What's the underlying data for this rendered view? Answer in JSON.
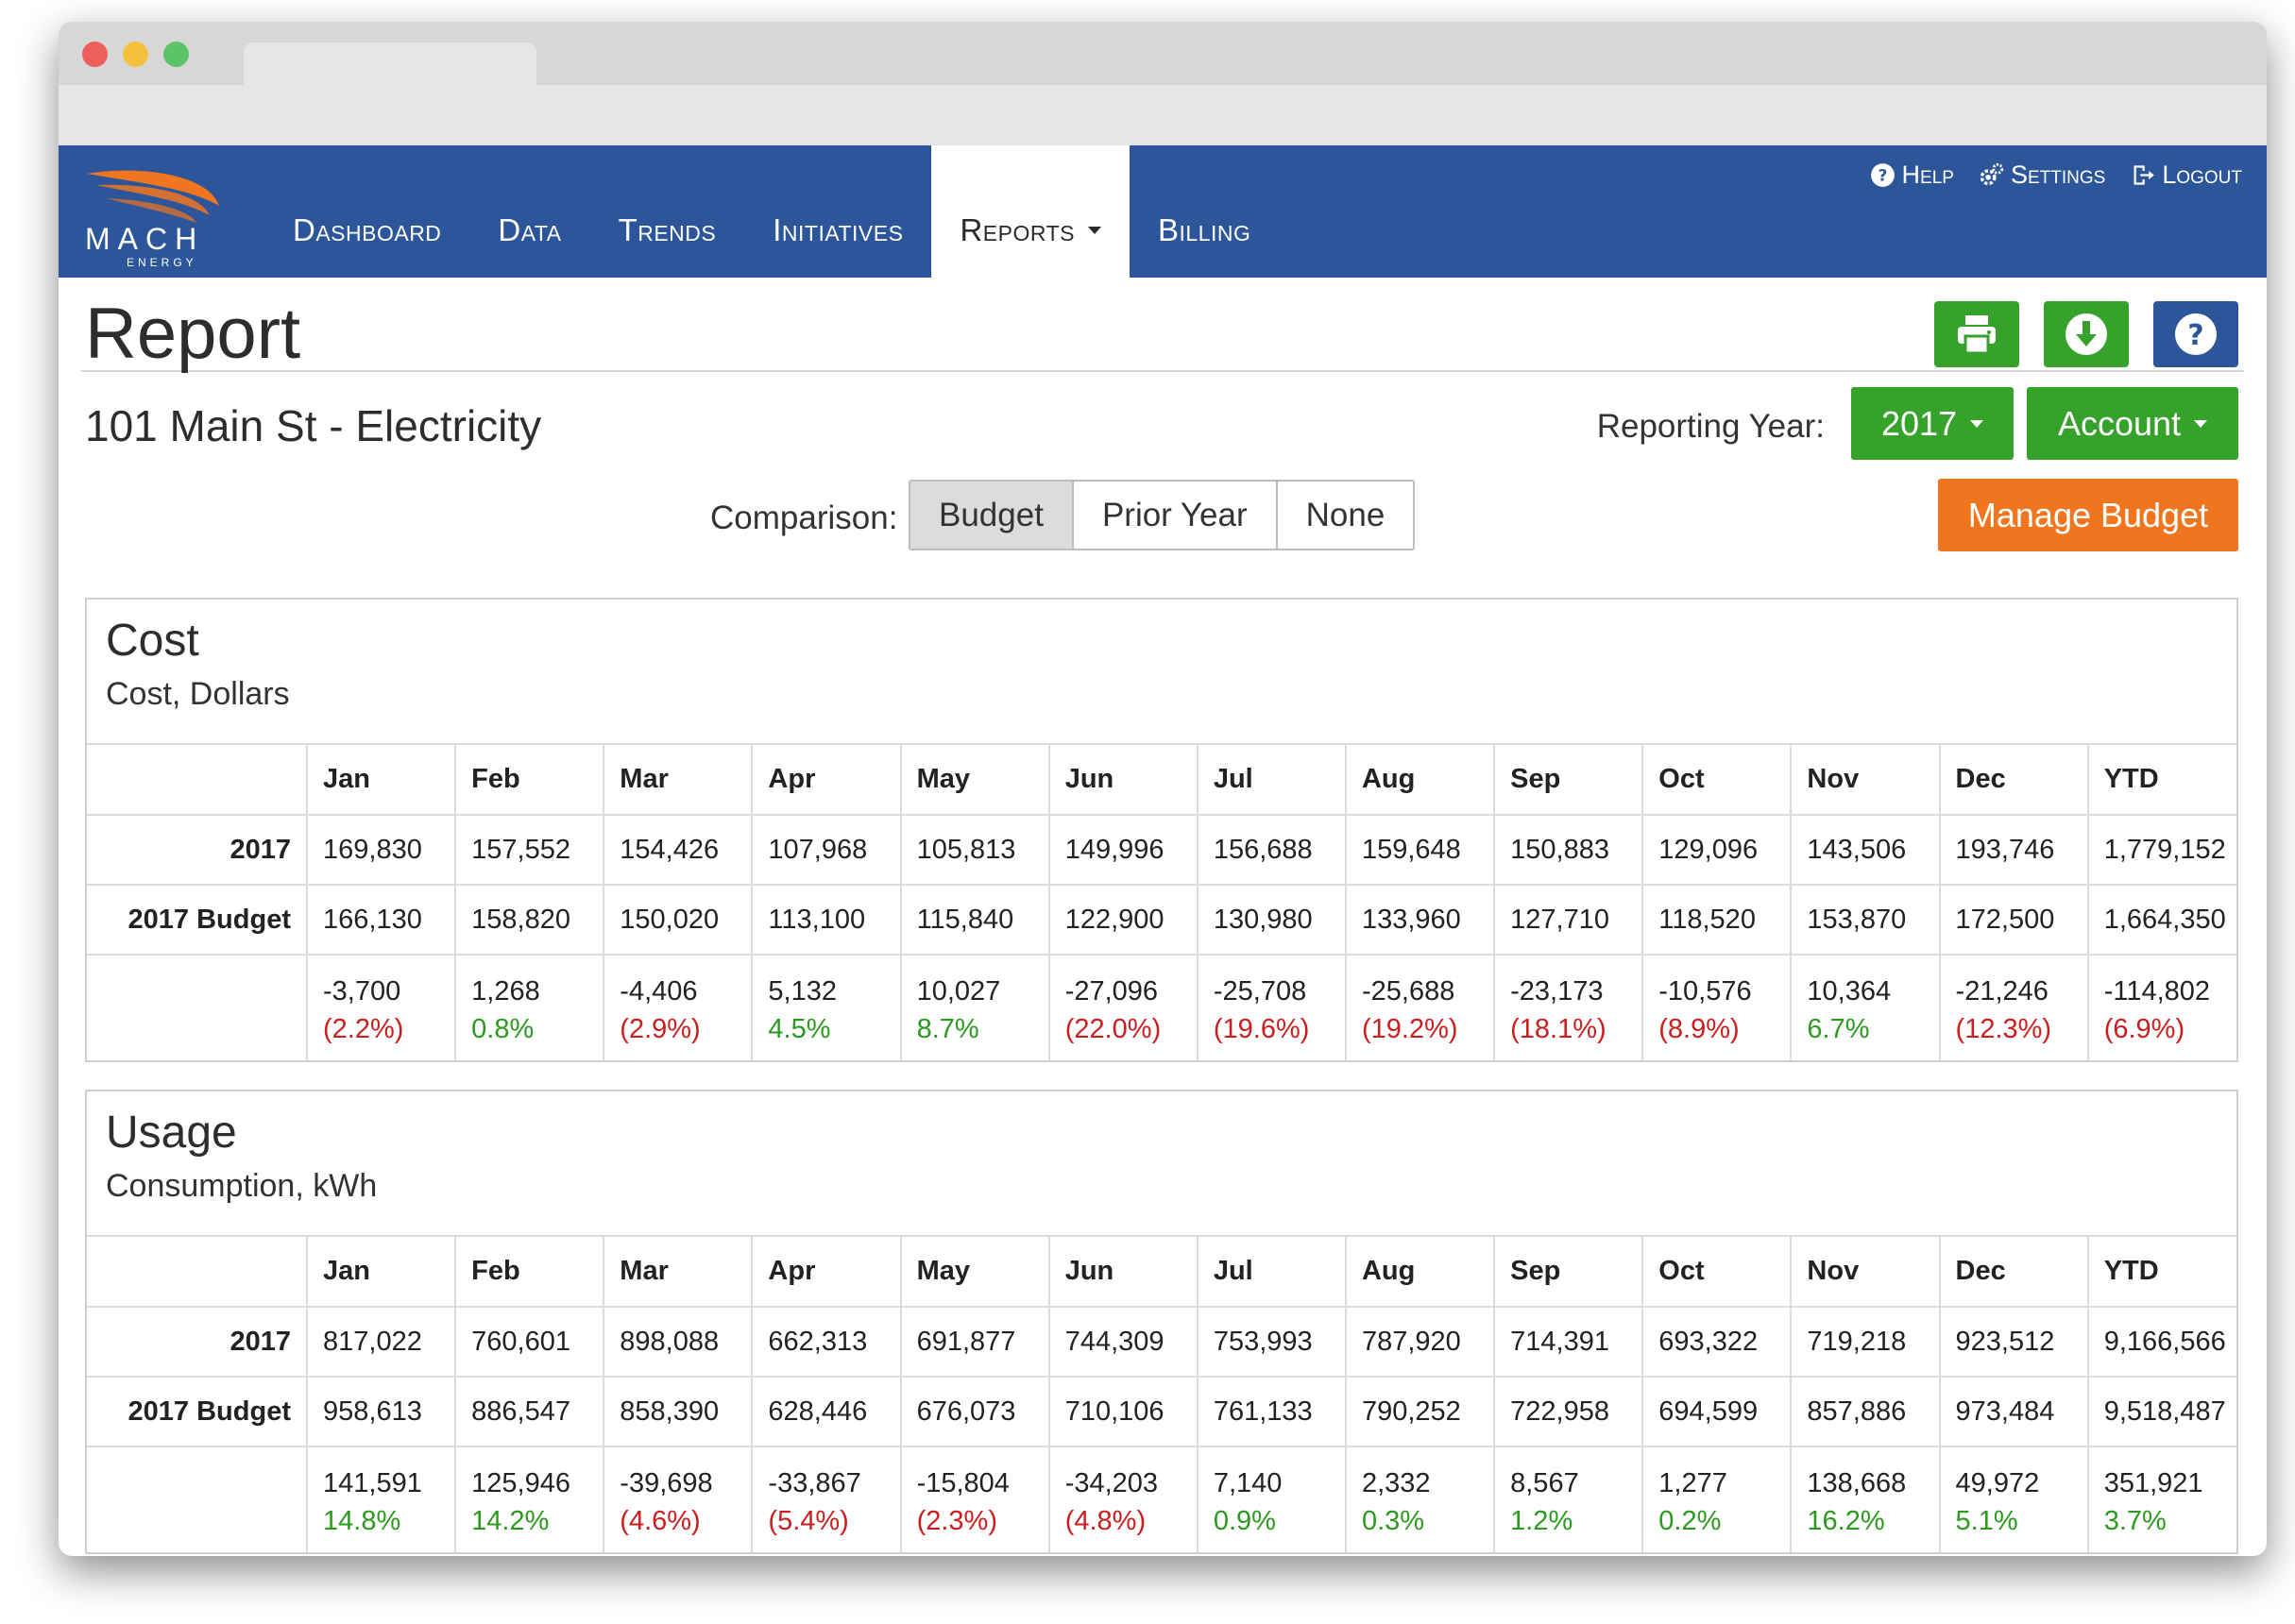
{
  "nav": {
    "items": [
      {
        "label": "Dashboard",
        "active": false
      },
      {
        "label": "Data",
        "active": false
      },
      {
        "label": "Trends",
        "active": false
      },
      {
        "label": "Initiatives",
        "active": false
      },
      {
        "label": "Reports",
        "active": true,
        "dropdown": true
      },
      {
        "label": "Billing",
        "active": false
      }
    ],
    "top_links": [
      {
        "label": "Help",
        "icon": "question-circle-icon"
      },
      {
        "label": "Settings",
        "icon": "gears-icon"
      },
      {
        "label": "Logout",
        "icon": "logout-icon"
      }
    ]
  },
  "logo": {
    "text": "MACH",
    "subtext": "ENERGY"
  },
  "page": {
    "title": "Report",
    "building": "101 Main St - Electricity",
    "reporting_year_label": "Reporting Year:",
    "reporting_year": "2017",
    "account_label": "Account",
    "comparison_label": "Comparison:",
    "comparison_options": [
      "Budget",
      "Prior Year",
      "None"
    ],
    "comparison_selected": "Budget",
    "manage_budget": "Manage Budget",
    "colors": {
      "nav": "#2c5699",
      "green": "#37a22b",
      "orange": "#f0751f",
      "negative": "#cc1e1e",
      "positive": "#2b9a1e"
    }
  },
  "columns": [
    "Jan",
    "Feb",
    "Mar",
    "Apr",
    "May",
    "Jun",
    "Jul",
    "Aug",
    "Sep",
    "Oct",
    "Nov",
    "Dec",
    "YTD"
  ],
  "panels": [
    {
      "id": "cost",
      "title": "Cost",
      "subtitle": "Cost, Dollars",
      "rows": [
        {
          "label": "2017",
          "values": [
            "169,830",
            "157,552",
            "154,426",
            "107,968",
            "105,813",
            "149,996",
            "156,688",
            "159,648",
            "150,883",
            "129,096",
            "143,506",
            "193,746",
            "1,779,152"
          ]
        },
        {
          "label": "2017 Budget",
          "values": [
            "166,130",
            "158,820",
            "150,020",
            "113,100",
            "115,840",
            "122,900",
            "130,980",
            "133,960",
            "127,710",
            "118,520",
            "153,870",
            "172,500",
            "1,664,350"
          ]
        }
      ],
      "diff": [
        {
          "value": "-3,700",
          "pct": "(2.2%)",
          "sign": "neg"
        },
        {
          "value": "1,268",
          "pct": "0.8%",
          "sign": "pos"
        },
        {
          "value": "-4,406",
          "pct": "(2.9%)",
          "sign": "neg"
        },
        {
          "value": "5,132",
          "pct": "4.5%",
          "sign": "pos"
        },
        {
          "value": "10,027",
          "pct": "8.7%",
          "sign": "pos"
        },
        {
          "value": "-27,096",
          "pct": "(22.0%)",
          "sign": "neg"
        },
        {
          "value": "-25,708",
          "pct": "(19.6%)",
          "sign": "neg"
        },
        {
          "value": "-25,688",
          "pct": "(19.2%)",
          "sign": "neg"
        },
        {
          "value": "-23,173",
          "pct": "(18.1%)",
          "sign": "neg"
        },
        {
          "value": "-10,576",
          "pct": "(8.9%)",
          "sign": "neg"
        },
        {
          "value": "10,364",
          "pct": "6.7%",
          "sign": "pos"
        },
        {
          "value": "-21,246",
          "pct": "(12.3%)",
          "sign": "neg"
        },
        {
          "value": "-114,802",
          "pct": "(6.9%)",
          "sign": "neg"
        }
      ]
    },
    {
      "id": "usage",
      "title": "Usage",
      "subtitle": "Consumption, kWh",
      "rows": [
        {
          "label": "2017",
          "values": [
            "817,022",
            "760,601",
            "898,088",
            "662,313",
            "691,877",
            "744,309",
            "753,993",
            "787,920",
            "714,391",
            "693,322",
            "719,218",
            "923,512",
            "9,166,566"
          ]
        },
        {
          "label": "2017 Budget",
          "values": [
            "958,613",
            "886,547",
            "858,390",
            "628,446",
            "676,073",
            "710,106",
            "761,133",
            "790,252",
            "722,958",
            "694,599",
            "857,886",
            "973,484",
            "9,518,487"
          ]
        }
      ],
      "diff": [
        {
          "value": "141,591",
          "pct": "14.8%",
          "sign": "pos"
        },
        {
          "value": "125,946",
          "pct": "14.2%",
          "sign": "pos"
        },
        {
          "value": "-39,698",
          "pct": "(4.6%)",
          "sign": "neg"
        },
        {
          "value": "-33,867",
          "pct": "(5.4%)",
          "sign": "neg"
        },
        {
          "value": "-15,804",
          "pct": "(2.3%)",
          "sign": "neg"
        },
        {
          "value": "-34,203",
          "pct": "(4.8%)",
          "sign": "neg"
        },
        {
          "value": "7,140",
          "pct": "0.9%",
          "sign": "pos"
        },
        {
          "value": "2,332",
          "pct": "0.3%",
          "sign": "pos"
        },
        {
          "value": "8,567",
          "pct": "1.2%",
          "sign": "pos"
        },
        {
          "value": "1,277",
          "pct": "0.2%",
          "sign": "pos"
        },
        {
          "value": "138,668",
          "pct": "16.2%",
          "sign": "pos"
        },
        {
          "value": "49,972",
          "pct": "5.1%",
          "sign": "pos"
        },
        {
          "value": "351,921",
          "pct": "3.7%",
          "sign": "pos"
        }
      ]
    }
  ]
}
